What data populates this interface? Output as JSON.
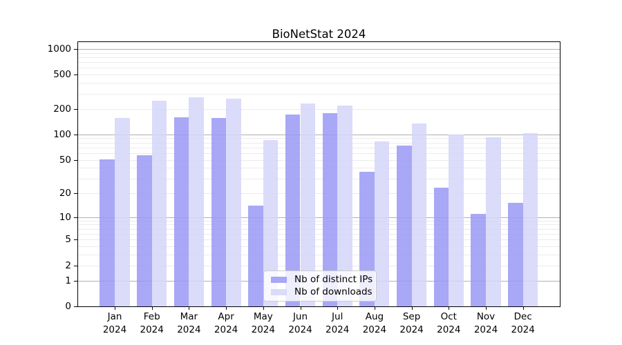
{
  "chart_data": {
    "type": "bar",
    "title": "BioNetStat 2024",
    "xlabel": "",
    "ylabel": "",
    "categories": [
      "Jan",
      "Feb",
      "Mar",
      "Apr",
      "May",
      "Jun",
      "Jul",
      "Aug",
      "Sep",
      "Oct",
      "Nov",
      "Dec"
    ],
    "x_year_label": "2024",
    "series": [
      {
        "name": "Nb of distinct IPs",
        "color": "#9999f5",
        "opacity": 0.85,
        "values": [
          51,
          57,
          158,
          156,
          14,
          172,
          177,
          36,
          74,
          23,
          11,
          15
        ]
      },
      {
        "name": "Nb of downloads",
        "color": "#d5d5f9",
        "opacity": 0.85,
        "values": [
          155,
          250,
          270,
          262,
          85,
          231,
          217,
          82,
          135,
          100,
          92,
          103
        ]
      }
    ],
    "yscale": "log1p",
    "ylim": [
      0,
      1200
    ],
    "yticks": [
      1000,
      500,
      200,
      100,
      50,
      20,
      10,
      5,
      2,
      1,
      0
    ],
    "grid": {
      "on": true,
      "major": [
        1,
        10,
        100,
        1000
      ],
      "minor": [
        2,
        3,
        4,
        5,
        6,
        7,
        8,
        9,
        20,
        30,
        40,
        50,
        60,
        70,
        80,
        90,
        200,
        300,
        400,
        500,
        600,
        700,
        800,
        900
      ]
    },
    "legend_position": "lower center"
  },
  "colors": {
    "background": "#ffffff",
    "spine": "#000000",
    "grid_major": "#b0b0b0",
    "grid_minor": "#ebebeb",
    "text": "#000000",
    "legend_border": "#cccccc",
    "legend_background": "#ffffff"
  }
}
